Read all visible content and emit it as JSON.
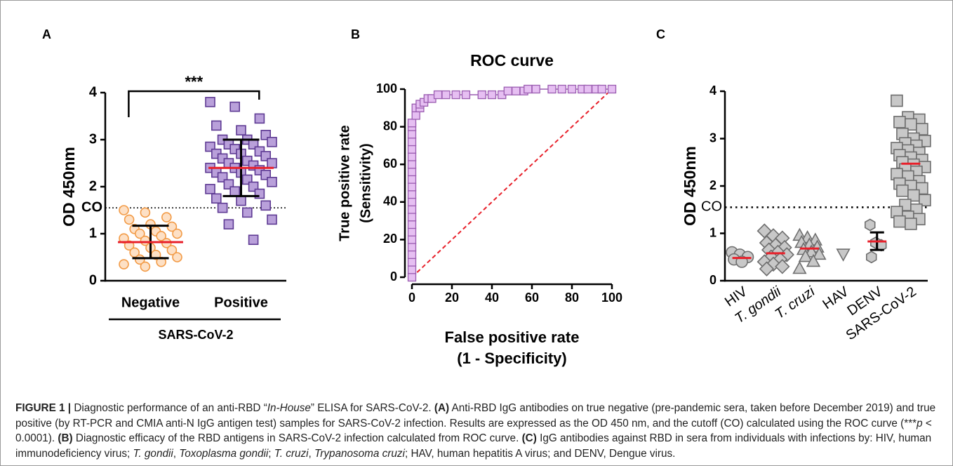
{
  "chart_data": [
    {
      "type": "dot_plot",
      "panel_label": "A",
      "ylabel": "OD 450nm",
      "categories": [
        "Negative",
        "Positive"
      ],
      "group_label": "SARS-CoV-2",
      "significance": "***",
      "ylim": [
        0,
        4
      ],
      "yticks": [
        0,
        1,
        2,
        3,
        4
      ],
      "cutoff": {
        "value": 1.55,
        "label": "CO"
      },
      "markers": [
        "circle",
        "square"
      ],
      "colors": [
        {
          "fill": "#fde0c5",
          "stroke": "#f29a45"
        },
        {
          "fill": "#b9a0da",
          "stroke": "#5e3a93"
        }
      ],
      "mean_color": "#e8202a",
      "points": [
        [
          1.5,
          1.45,
          1.35,
          1.3,
          1.2,
          1.15,
          1.1,
          1.05,
          1.0,
          1.0,
          0.95,
          0.9,
          0.85,
          0.8,
          0.75,
          0.7,
          0.65,
          0.6,
          0.55,
          0.5,
          0.45,
          0.4,
          0.35,
          0.3
        ],
        [
          3.8,
          3.7,
          3.45,
          3.3,
          3.2,
          3.1,
          3.0,
          3.0,
          2.95,
          2.9,
          2.9,
          2.85,
          2.8,
          2.75,
          2.7,
          2.7,
          2.65,
          2.6,
          2.55,
          2.5,
          2.5,
          2.45,
          2.4,
          2.4,
          2.35,
          2.3,
          2.3,
          2.25,
          2.2,
          2.15,
          2.1,
          2.05,
          2.0,
          1.95,
          1.9,
          1.85,
          1.75,
          1.7,
          1.6,
          1.55,
          1.45,
          1.3,
          1.2,
          0.87
        ]
      ],
      "means": [
        0.82,
        2.4
      ],
      "error_low": [
        0.48,
        1.8
      ],
      "error_high": [
        1.17,
        3.0
      ]
    },
    {
      "type": "roc",
      "panel_label": "B",
      "title": "ROC curve",
      "xlabel": [
        "False positive rate",
        "(1 - Specificity)"
      ],
      "ylabel": [
        "True positive rate",
        "(Sensitivity)"
      ],
      "xlim": [
        0,
        100
      ],
      "ylim": [
        0,
        100
      ],
      "xticks": [
        0,
        20,
        40,
        60,
        80,
        100
      ],
      "yticks": [
        0,
        20,
        40,
        60,
        80,
        100
      ],
      "color": {
        "fill": "#e6bff2",
        "stroke": "#9a5cb0"
      },
      "reference_color": "#e8202a",
      "x": [
        0,
        0,
        0,
        0,
        0,
        0,
        0,
        0,
        0,
        0,
        0,
        0,
        0,
        0,
        0,
        0,
        0,
        0,
        0,
        0,
        0,
        0,
        2,
        2,
        4,
        4,
        6,
        8,
        10,
        13,
        17,
        22,
        27,
        35,
        40,
        45,
        48,
        52,
        56,
        58,
        62,
        70,
        75,
        80,
        85,
        88,
        92,
        95,
        100
      ],
      "y": [
        0,
        4,
        8,
        12,
        16,
        20,
        24,
        28,
        32,
        36,
        40,
        44,
        48,
        52,
        56,
        60,
        64,
        68,
        72,
        76,
        80,
        82,
        86,
        90,
        90,
        92,
        93,
        95,
        95,
        97,
        97,
        97,
        97,
        97,
        97,
        97,
        99,
        99,
        99,
        100,
        100,
        100,
        100,
        100,
        100,
        100,
        100,
        100,
        100
      ]
    },
    {
      "type": "dot_plot",
      "panel_label": "C",
      "ylabel": "OD 450nm",
      "categories": [
        "HIV",
        "T. gondii",
        "T. cruzi",
        "HAV",
        "DENV",
        "SARS-CoV-2"
      ],
      "category_italic": [
        false,
        true,
        true,
        false,
        false,
        false
      ],
      "ylim": [
        0,
        4
      ],
      "yticks": [
        0,
        1,
        2,
        3,
        4
      ],
      "cutoff": {
        "value": 1.55,
        "label": "CO"
      },
      "markers": [
        "circle",
        "diamond",
        "triangle",
        "triangle-down",
        "hexagon",
        "square"
      ],
      "colors": [
        {
          "fill": "#c8c8c8",
          "stroke": "#6e6e6e"
        },
        {
          "fill": "#c8c8c8",
          "stroke": "#6e6e6e"
        },
        {
          "fill": "#c8c8c8",
          "stroke": "#6e6e6e"
        },
        {
          "fill": "#c8c8c8",
          "stroke": "#6e6e6e"
        },
        {
          "fill": "#c8c8c8",
          "stroke": "#6e6e6e"
        },
        {
          "fill": "#c8c8c8",
          "stroke": "#6e6e6e"
        }
      ],
      "mean_color": "#e8202a",
      "points": [
        [
          0.6,
          0.55,
          0.5,
          0.45,
          0.4
        ],
        [
          1.05,
          0.95,
          0.9,
          0.8,
          0.75,
          0.7,
          0.65,
          0.6,
          0.55,
          0.5,
          0.45,
          0.4,
          0.35,
          0.3,
          0.25
        ],
        [
          0.95,
          0.9,
          0.85,
          0.8,
          0.75,
          0.7,
          0.65,
          0.6,
          0.55,
          0.5,
          0.4,
          0.25
        ],
        [
          0.57
        ],
        [
          1.18,
          0.8,
          0.75,
          0.5
        ],
        [
          3.8,
          3.45,
          3.4,
          3.35,
          3.3,
          3.2,
          3.1,
          3.0,
          2.95,
          2.9,
          2.85,
          2.8,
          2.75,
          2.7,
          2.65,
          2.6,
          2.55,
          2.5,
          2.45,
          2.4,
          2.35,
          2.3,
          2.25,
          2.2,
          2.1,
          2.05,
          2.0,
          1.95,
          1.9,
          1.8,
          1.7,
          1.6,
          1.5,
          1.45,
          1.35,
          1.3,
          1.25,
          1.2
        ]
      ],
      "means": [
        0.48,
        0.58,
        0.68,
        null,
        0.83,
        2.47
      ],
      "error_low": [
        null,
        null,
        null,
        null,
        0.65,
        null
      ],
      "error_high": [
        null,
        null,
        null,
        null,
        1.02,
        null
      ]
    }
  ],
  "caption": [
    {
      "text": "FIGURE 1 |",
      "bold": true
    },
    {
      "text": " Diagnostic performance of an anti-RBD “"
    },
    {
      "text": "In-House",
      "italic": true
    },
    {
      "text": "” ELISA for SARS-CoV-2. "
    },
    {
      "text": "(A)",
      "bold": true
    },
    {
      "text": " Anti-RBD IgG antibodies on true negative (pre-pandemic sera, taken before December 2019) and true positive (by RT-PCR and CMIA anti-N IgG antigen test) samples for SARS-CoV-2 infection. Results are expressed as the OD 450 nm, and the cutoff (CO) calculated using the ROC curve (***"
    },
    {
      "text": "p",
      "italic": true
    },
    {
      "text": " < 0.0001). "
    },
    {
      "text": "(B)",
      "bold": true
    },
    {
      "text": " Diagnostic efficacy of the RBD antigens in SARS-CoV-2 infection calculated from ROC curve. "
    },
    {
      "text": "(C)",
      "bold": true
    },
    {
      "text": " IgG antibodies against RBD in sera from individuals with infections by: HIV, human immunodeficiency virus; "
    },
    {
      "text": "T. gondii",
      "italic": true
    },
    {
      "text": ", "
    },
    {
      "text": "Toxoplasma gondii",
      "italic": true
    },
    {
      "text": "; "
    },
    {
      "text": "T. cruzi",
      "italic": true
    },
    {
      "text": ", "
    },
    {
      "text": "Trypanosoma cruzi",
      "italic": true
    },
    {
      "text": "; HAV, human hepatitis A virus; and DENV, Dengue virus."
    }
  ]
}
